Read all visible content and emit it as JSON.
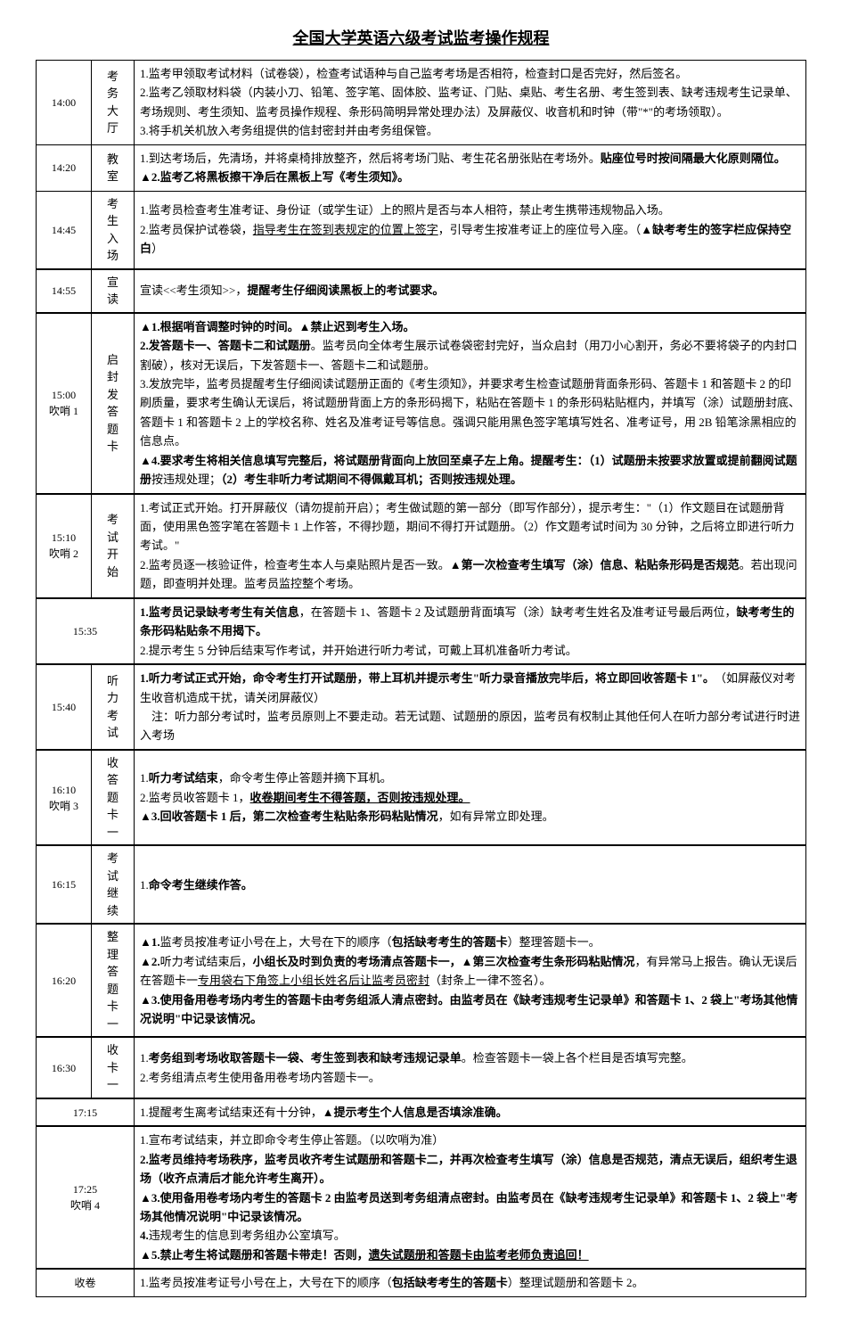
{
  "title": "全国大学英语六级考试监考操作规程",
  "rows": [
    {
      "time": "14:00",
      "loc": "考务大厅",
      "content": "1.监考甲领取考试材料（试卷袋），检查考试语种与自己监考考场是否相符，检查封口是否完好，然后签名。\n2.监考乙领取材料袋（内装小刀、铅笔、签字笔、固体胶、监考证、门贴、桌贴、考生名册、考生签到表、缺考违规考生记录单、考场规则、考生须知、监考员操作规程、条形码简明异常处理办法）及屏蔽仪、收音机和时钟（带\"*\"的考场领取）。\n3.将手机关机放入考务组提供的信封密封并由考务组保管。"
    },
    {
      "time": "14:20",
      "loc": "教室",
      "content": "1.到达考场后，先清场，并将桌椅排放整齐，然后将考场门贴、考生花名册张贴在考场外。<span class='b'>贴座位号时按间隔最大化原则隔位。</span>\n<span class='b'>▲2.监考乙将黑板擦干净后在黑板上写《考生须知》。</span>"
    },
    {
      "time": "14:45",
      "loc": "考生入场",
      "content": "1.监考员检查考生准考证、身份证（或学生证）上的照片是否与本人相符，禁止考生携带违规物品入场。\n2.监考员保护试卷袋，<span class='u'>指导考生在签到表规定的位置上签字</span>，引导考生按准考证上的座位号入座。（<span class='b'>▲缺考考生的签字栏应保持空白</span>）"
    },
    {
      "time": "14:55",
      "loc": "宣读",
      "content": "宣读<<考生须知>>，<span class='b'>提醒考生仔细阅读黑板上的考试要求。</span>",
      "sectionTop": true
    },
    {
      "time": "15:00\n吹哨 1",
      "loc": "启封发答题卡",
      "content": "<span class='b'>▲1.根据哨音调整时钟的时间。▲禁止迟到考生入场。</span>\n<span class='b'>2.发答题卡一、答题卡二和试题册</span>。监考员向全体考生展示试卷袋密封完好，当众启封（用刀小心割开，务必不要将袋子的内封口割破），核对无误后，下发答题卡一、答题卡二和试题册。\n3.发放完毕，监考员提醒考生仔细阅读试题册正面的《考生须知》，并要求考生检查试题册背面条形码、答题卡 1 和答题卡 2 的印刷质量，要求考生确认无误后，将试题册背面上方的条形码揭下，粘贴在答题卡 1 的条形码粘贴框内，并填写（涂）试题册封底、答题卡 1 和答题卡 2 上的学校名称、姓名及准考证号等信息。强调只能用黑色签字笔填写姓名、准考证号，用 2B 铅笔涂黑相应的信息点。\n<span class='b'>▲4.要求考生将相关信息填写完整后，将试题册背面向上放回至桌子左上角。提醒考生：（1）试题册未按要求放置或提前翻阅试题册</span>按违规处理；<span class='b'>（2）考生非听力考试期间不得佩戴耳机；否则按违规处理。</span>",
      "sectionTop": true
    },
    {
      "time": "15:10\n吹哨 2",
      "loc": "考试开始",
      "content": "1.考试正式开始。打开屏蔽仪（请勿提前开启）；考生做试题的第一部分（即写作部分），提示考生：\"（1）作文题目在试题册背面，使用黑色签字笔在答题卡 1 上作答，不得抄题，期间不得打开试题册。（2）作文题考试时间为 30 分钟，之后将立即进行听力考试。\"\n2.监考员逐一核验证件，检查考生本人与桌贴照片是否一致。<span class='b'>▲第一次检查考生填写（涂）信息、粘贴条形码是否规范</span>。若出现问题，即查明并处理。监考员监控整个考场。",
      "sectionTop": true
    },
    {
      "time": "15:35",
      "loc": "",
      "mergeTimeLoc": true,
      "content": "<span class='b'>1.监考员记录缺考考生有关信息</span>，在答题卡 1、答题卡 2 及试题册背面填写（涂）缺考考生姓名及准考证号最后两位，<span class='b'>缺考考生的条形码粘贴条不用揭下。</span>\n2.提示考生 5 分钟后结束写作考试，并开始进行听力考试，可戴上耳机准备听力考试。",
      "sectionTop": true
    },
    {
      "time": "15:40",
      "loc": "听力考试",
      "content": "<span class='b'>1.听力考试正式开始，命令考生打开试题册，带上耳机并提示考生\"听力录音播放完毕后，将立即回收答题卡 1\"。</span>　（如屏蔽仪对考生收音机造成干扰，请关闭屏蔽仪）\n　注：听力部分考试时，监考员原则上不要走动。若无试题、试题册的原因，监考员有权制止其他任何人在听力部分考试进行时进入考场",
      "sectionTop": true
    },
    {
      "time": "16:10\n吹哨 3",
      "loc": "收答题卡一",
      "content": "1.<span class='b'>听力考试结束</span>，命令考生停止答题并摘下耳机。\n2.监考员收答题卡 1，<span class='bu'>收卷期间考生不得答题，否则按违规处理。</span>\n<span class='b'>▲3.回收答题卡 1 后，第二次检查考生粘贴条形码粘贴情况</span>，如有异常立即处理。",
      "sectionTop": true
    },
    {
      "time": "16:15",
      "loc": "考试继续",
      "content": "1.<span class='b'>命令考生继续作答。</span>",
      "sectionTop": true
    },
    {
      "time": "16:20",
      "loc": "整理答题卡一",
      "content": "<span class='b'>▲1.</span>监考员按准考证小号在上，大号在下的顺序（<span class='b'>包括缺考考生的答题卡</span>）整理答题卡一。\n<span class='b'>▲2.</span>听力考试结束后，<span class='b'>小组长及时到负责的考场清点答题卡一，▲第三次检查考生条形码粘贴情况</span>，有异常马上报告。确认无误后在答题卡一<span class='u'>专用袋右下角签上小组长姓名后让监考员密封</span>（封条上一律不签名）。\n<span class='b'>▲3.使用备用卷考场内考生的答题卡由考务组派人清点密封。由监考员在《缺考违规考生记录单》和答题卡 1、2 袋上\"考场其他情况说明\"中记录该情况。</span>",
      "sectionTop": true
    },
    {
      "time": "16:30",
      "loc": "收卡一",
      "content": "1.<span class='b'>考务组到考场收取答题卡一袋、考生签到表和缺考违规记录单</span>。检查答题卡一袋上各个栏目是否填写完整。\n2.考务组清点考生使用备用卷考场内答题卡一。",
      "sectionTop": true
    },
    {
      "time": "17:15",
      "loc": "",
      "mergeTimeLoc": true,
      "content": "1.提醒考生离考试结束还有十分钟，<span class='b'>▲提示考生个人信息是否填涂准确。</span>",
      "sectionTop": true
    },
    {
      "time": "17:25\n吹哨 4",
      "loc": "",
      "mergeTimeLoc": true,
      "content": "1.宣布考试结束，并立即命令考生停止答题。（以吹哨为准）\n<span class='b'>2.监考员维持考场秩序，监考员收齐考生试题册和答题卡二，并再次检查考生填写（涂）信息是否规范，清点无误后，组织考生退场（收齐点清后才能允许考生离开）。</span>\n<span class='b'>▲3.使用备用卷考场内考生的答题卡 2 由监考员送到考务组清点密封。由监考员在《缺考违规考生记录单》和答题卡 1、2 袋上\"考场其他情况说明\"中记录该情况。</span>\n<span class='b'>4.</span>违规考生的信息到考务组办公室填写。\n<span class='b'>▲5.禁止考生将试题册和答题卡带走！否则，<span class='u'>遗失试题册和答题卡由监考老师负责追回！</span></span>",
      "sectionTop": true
    },
    {
      "time": "",
      "loc": "收卷",
      "mergeTimeLoc": true,
      "locOnly": true,
      "content": "1.监考员按准考证号小号在上，大号在下的顺序（<span class='b'>包括缺考考生的答题卡</span>）整理试题册和答题卡 2。",
      "sectionTop": true
    }
  ]
}
